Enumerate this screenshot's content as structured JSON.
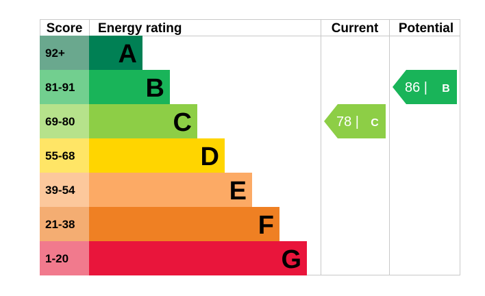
{
  "chart_data": {
    "type": "table",
    "headers": {
      "score": "Score",
      "energy_rating": "Energy rating",
      "current": "Current",
      "potential": "Potential"
    },
    "bands": [
      {
        "letter": "A",
        "range": "92+",
        "color": "#008054",
        "score_bg": "#6aa88e"
      },
      {
        "letter": "B",
        "range": "81-91",
        "color": "#19b459",
        "score_bg": "#72cf8f"
      },
      {
        "letter": "C",
        "range": "69-80",
        "color": "#8dce46",
        "score_bg": "#b6e28b"
      },
      {
        "letter": "D",
        "range": "55-68",
        "color": "#ffd500",
        "score_bg": "#ffe566"
      },
      {
        "letter": "E",
        "range": "39-54",
        "color": "#fcaa65",
        "score_bg": "#fcc89c"
      },
      {
        "letter": "F",
        "range": "21-38",
        "color": "#ef8023",
        "score_bg": "#f4ad72"
      },
      {
        "letter": "G",
        "range": "1-20",
        "color": "#e9153b",
        "score_bg": "#f17a8d"
      }
    ],
    "current": {
      "value": 78,
      "letter": "C",
      "label": "78 |",
      "color": "#8dce46"
    },
    "potential": {
      "value": 86,
      "letter": "B",
      "label": "86 |",
      "color": "#19b459"
    }
  }
}
